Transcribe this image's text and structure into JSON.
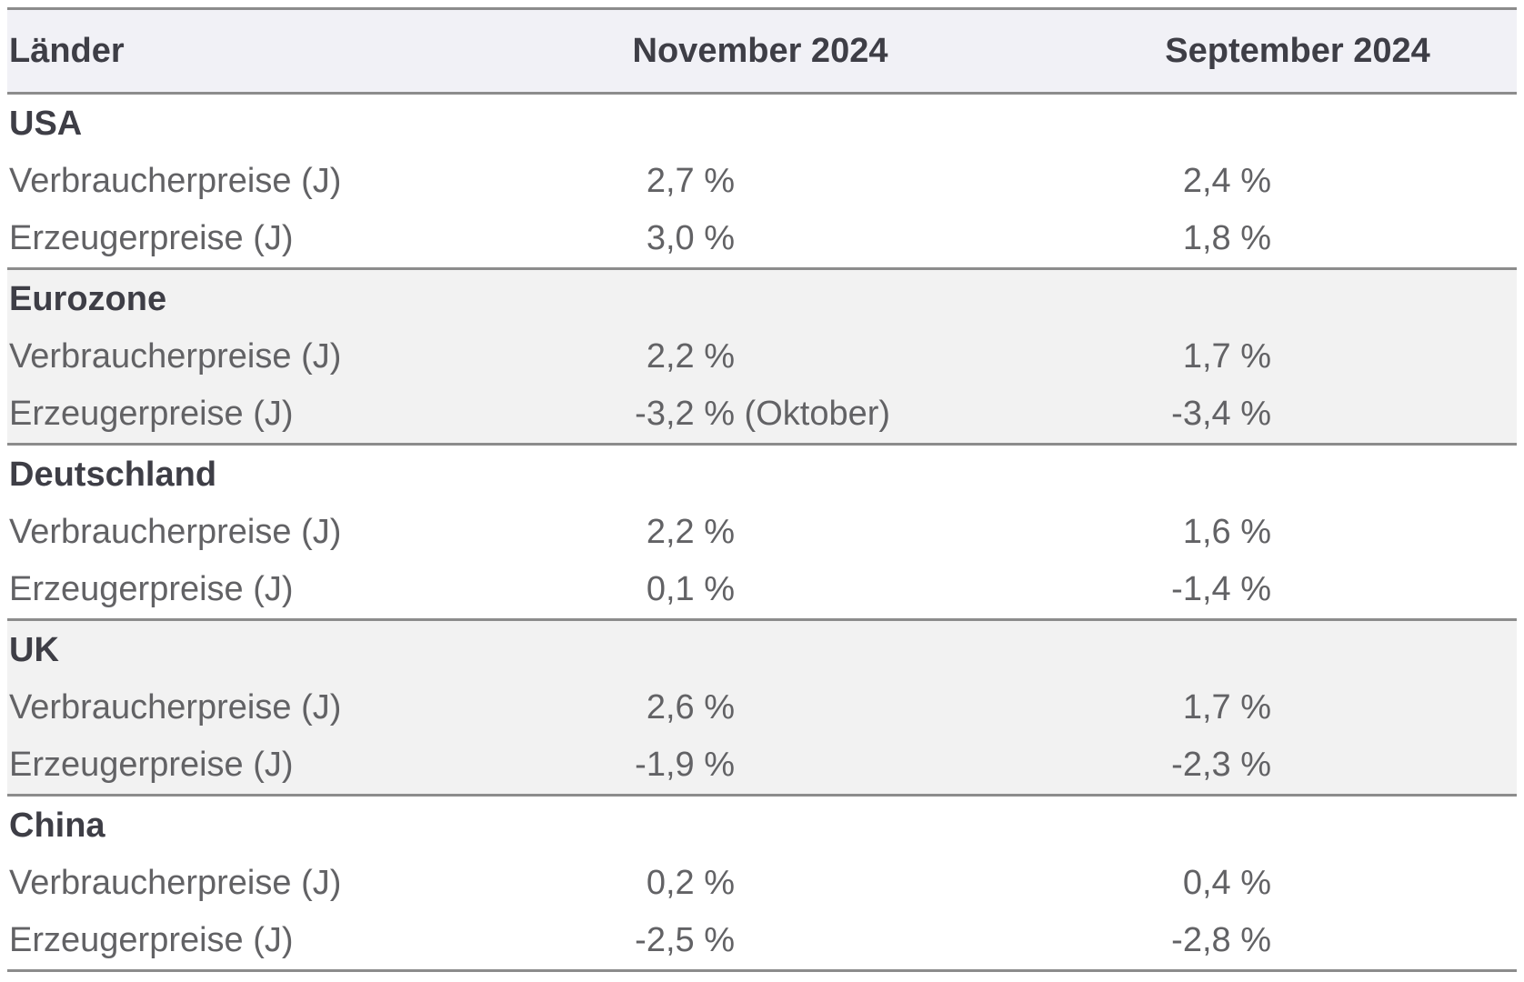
{
  "table": {
    "columns": {
      "laender": "Länder",
      "november": "November 2024",
      "september": "September 2024"
    },
    "sections": [
      {
        "country": "USA",
        "rows": [
          {
            "label": "Verbraucherpreise (J)",
            "nov": "2,7 %",
            "sep": "2,4 %"
          },
          {
            "label": "Erzeugerpreise (J)",
            "nov": "3,0 %",
            "sep": "1,8 %"
          }
        ]
      },
      {
        "country": "Eurozone",
        "rows": [
          {
            "label": "Verbraucherpreise (J)",
            "nov": "2,2 %",
            "sep": "1,7 %"
          },
          {
            "label": "Erzeugerpreise (J)",
            "nov": "-3,2 %",
            "nov_suffix": " (Oktober)",
            "sep": "-3,4 %"
          }
        ]
      },
      {
        "country": "Deutschland",
        "rows": [
          {
            "label": "Verbraucherpreise (J)",
            "nov": "2,2 %",
            "sep": "1,6 %"
          },
          {
            "label": "Erzeugerpreise (J)",
            "nov": "0,1 %",
            "sep": "-1,4 %"
          }
        ]
      },
      {
        "country": "UK",
        "rows": [
          {
            "label": "Verbraucherpreise (J)",
            "nov": "2,6 %",
            "sep": "1,7 %"
          },
          {
            "label": "Erzeugerpreise (J)",
            "nov": "-1,9 %",
            "sep": "-2,3 %"
          }
        ]
      },
      {
        "country": "China",
        "rows": [
          {
            "label": "Verbraucherpreise (J)",
            "nov": "0,2 %",
            "sep": "0,4 %"
          },
          {
            "label": "Erzeugerpreise (J)",
            "nov": "-2,5 %",
            "sep": "-2,8 %"
          }
        ]
      }
    ],
    "colors": {
      "header_background": "#f1f1f6",
      "stripe_background": "#f2f2f2",
      "rule": "#8c8c8c",
      "heading_text": "#3e3e46",
      "body_text": "#626265"
    }
  },
  "chart_data": {
    "type": "table",
    "title": "",
    "columns": [
      "Länder",
      "November 2024",
      "September 2024"
    ],
    "categories": [
      "USA",
      "Eurozone",
      "Deutschland",
      "UK",
      "China"
    ],
    "series": [
      {
        "name": "Verbraucherpreise (J) November 2024",
        "values": [
          2.7,
          2.2,
          2.2,
          2.6,
          0.2
        ]
      },
      {
        "name": "Verbraucherpreise (J) September 2024",
        "values": [
          2.4,
          1.7,
          1.6,
          1.7,
          0.4
        ]
      },
      {
        "name": "Erzeugerpreise (J) November 2024",
        "values": [
          3.0,
          -3.2,
          0.1,
          -1.9,
          -2.5
        ]
      },
      {
        "name": "Erzeugerpreise (J) September 2024",
        "values": [
          1.8,
          -3.4,
          -1.4,
          -2.3,
          -2.8
        ]
      }
    ],
    "annotations": [
      "Eurozone Erzeugerpreise November value refers to Oktober: -3,2 % (Oktober)"
    ],
    "unit": "%",
    "decimal_separator": ","
  }
}
